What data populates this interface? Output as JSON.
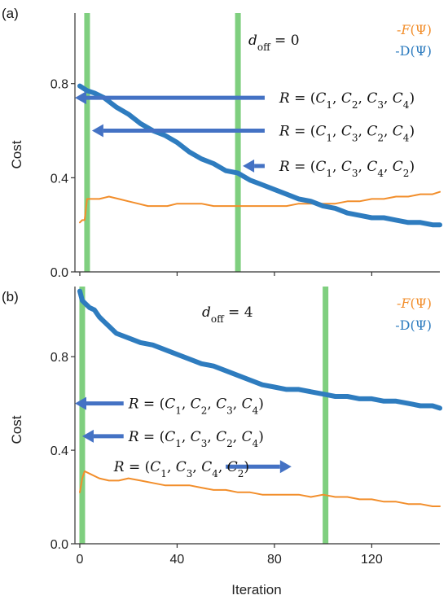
{
  "figure": {
    "x_axis_title": "Iteration",
    "y_axis_title": "Cost",
    "colors": {
      "F": "#f28e2b",
      "D": "#2e7cbf",
      "band": "#7fcf7f",
      "arrow": "#4472c4"
    }
  },
  "chart_data": [
    {
      "type": "line",
      "panel_label": "(a)",
      "annotation": "d_off = 0",
      "xlim": [
        -2,
        148
      ],
      "ylim": [
        0,
        1.1
      ],
      "x_ticks": [
        0,
        40,
        80,
        120
      ],
      "y_ticks": [
        0.0,
        0.4,
        0.8
      ],
      "y_tick_labels": [
        "0.0",
        "0.4",
        "0.8"
      ],
      "legend": {
        "position": "top-right",
        "entries": [
          "-F(Ψ)",
          "-D(Ψ)"
        ]
      },
      "green_bands_x": [
        3,
        65
      ],
      "series": [
        {
          "name": "-F(Ψ)",
          "color": "#f28e2b",
          "x": [
            0,
            1,
            2,
            3,
            5,
            8,
            12,
            16,
            20,
            24,
            28,
            32,
            36,
            40,
            45,
            50,
            55,
            60,
            65,
            70,
            75,
            80,
            85,
            90,
            95,
            100,
            105,
            110,
            115,
            120,
            125,
            130,
            135,
            140,
            145,
            148
          ],
          "y": [
            0.21,
            0.22,
            0.22,
            0.31,
            0.31,
            0.31,
            0.32,
            0.31,
            0.3,
            0.29,
            0.28,
            0.28,
            0.28,
            0.29,
            0.29,
            0.29,
            0.28,
            0.28,
            0.28,
            0.28,
            0.28,
            0.28,
            0.28,
            0.29,
            0.29,
            0.29,
            0.29,
            0.3,
            0.3,
            0.31,
            0.31,
            0.32,
            0.32,
            0.33,
            0.33,
            0.34
          ]
        },
        {
          "name": "-D(Ψ)",
          "color": "#2e7cbf",
          "x": [
            0,
            3,
            6,
            10,
            15,
            20,
            25,
            30,
            35,
            40,
            45,
            50,
            55,
            60,
            65,
            70,
            75,
            80,
            85,
            90,
            95,
            100,
            105,
            110,
            115,
            120,
            125,
            130,
            135,
            140,
            145,
            148
          ],
          "y": [
            0.79,
            0.77,
            0.76,
            0.74,
            0.7,
            0.67,
            0.63,
            0.6,
            0.58,
            0.55,
            0.51,
            0.48,
            0.46,
            0.43,
            0.42,
            0.39,
            0.37,
            0.35,
            0.33,
            0.31,
            0.3,
            0.28,
            0.27,
            0.25,
            0.24,
            0.23,
            0.23,
            0.22,
            0.21,
            0.21,
            0.2,
            0.2
          ]
        }
      ],
      "arrows": [
        {
          "label": "R = (C1, C2, C3, C4)",
          "direction": "left",
          "x_start": 76,
          "x_end": -2,
          "y": 0.74,
          "label_x": 82
        },
        {
          "label": "R = (C1, C3, C2, C4)",
          "direction": "left",
          "x_start": 76,
          "x_end": 5,
          "y": 0.6,
          "label_x": 82
        },
        {
          "label": "R = (C1, C3, C4, C2)",
          "direction": "left",
          "x_start": 76,
          "x_end": 67,
          "y": 0.45,
          "label_x": 82
        }
      ]
    },
    {
      "type": "line",
      "panel_label": "(b)",
      "annotation": "d_off = 4",
      "xlim": [
        -2,
        148
      ],
      "ylim": [
        0,
        1.1
      ],
      "x_ticks": [
        0,
        40,
        80,
        120
      ],
      "y_ticks": [
        0.0,
        0.4,
        0.8
      ],
      "y_tick_labels": [
        "0.0",
        "0.4",
        "0.8"
      ],
      "legend": {
        "position": "top-right",
        "entries": [
          "-F(Ψ)",
          "-D(Ψ)"
        ]
      },
      "green_bands_x": [
        1,
        101
      ],
      "series": [
        {
          "name": "-F(Ψ)",
          "color": "#f28e2b",
          "x": [
            0,
            1,
            2,
            4,
            8,
            12,
            16,
            20,
            25,
            30,
            35,
            40,
            45,
            50,
            55,
            60,
            65,
            70,
            75,
            80,
            85,
            90,
            95,
            100,
            105,
            110,
            115,
            120,
            125,
            130,
            135,
            140,
            145,
            148
          ],
          "y": [
            0.22,
            0.28,
            0.31,
            0.3,
            0.28,
            0.27,
            0.27,
            0.28,
            0.27,
            0.26,
            0.25,
            0.25,
            0.25,
            0.24,
            0.23,
            0.23,
            0.22,
            0.22,
            0.21,
            0.21,
            0.21,
            0.21,
            0.2,
            0.21,
            0.2,
            0.2,
            0.19,
            0.19,
            0.18,
            0.18,
            0.17,
            0.17,
            0.16,
            0.16
          ]
        },
        {
          "name": "-D(Ψ)",
          "color": "#2e7cbf",
          "x": [
            0,
            1,
            2,
            4,
            6,
            8,
            10,
            12,
            15,
            20,
            25,
            30,
            35,
            40,
            45,
            50,
            55,
            60,
            65,
            70,
            75,
            80,
            85,
            90,
            95,
            100,
            105,
            110,
            115,
            120,
            125,
            130,
            135,
            140,
            145,
            148
          ],
          "y": [
            1.08,
            1.04,
            1.03,
            1.01,
            1.0,
            0.97,
            0.95,
            0.93,
            0.9,
            0.88,
            0.86,
            0.85,
            0.83,
            0.81,
            0.79,
            0.77,
            0.76,
            0.74,
            0.72,
            0.7,
            0.68,
            0.67,
            0.66,
            0.66,
            0.65,
            0.64,
            0.63,
            0.63,
            0.62,
            0.62,
            0.61,
            0.61,
            0.6,
            0.59,
            0.59,
            0.58
          ]
        }
      ],
      "arrows": [
        {
          "label": "R = (C1, C2, C3, C4)",
          "direction": "left",
          "x_start": 18,
          "x_end": -2,
          "y": 0.6,
          "label_x": 20
        },
        {
          "label": "R = (C1, C3, C2, C4)",
          "direction": "left",
          "x_start": 18,
          "x_end": 1,
          "y": 0.46,
          "label_x": 20
        },
        {
          "label": "R = (C1, C3, C4, C2)",
          "direction": "right",
          "x_start": 60,
          "x_end": 87,
          "y": 0.33,
          "label_x": 14
        }
      ]
    }
  ]
}
